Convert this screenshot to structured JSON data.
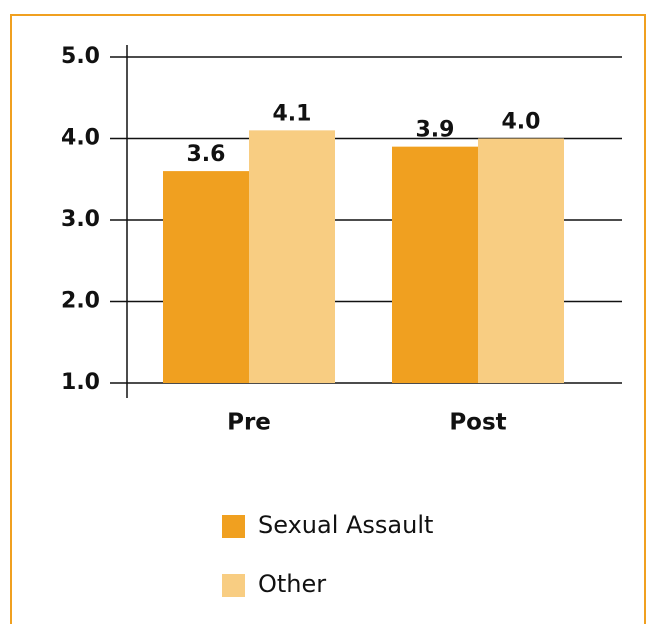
{
  "chart_data": {
    "type": "bar",
    "categories": [
      "Pre",
      "Post"
    ],
    "series": [
      {
        "name": "Sexual Assault",
        "color": "#f0a020",
        "values": [
          3.6,
          3.9
        ],
        "value_labels": [
          "3.6",
          "3.9"
        ]
      },
      {
        "name": "Other",
        "color": "#f8cd82",
        "values": [
          4.1,
          4.0
        ],
        "value_labels": [
          "4.1",
          "4.0"
        ]
      }
    ],
    "ylim": [
      1,
      5
    ],
    "yticks": [
      {
        "value": 1,
        "label": "1.0"
      },
      {
        "value": 2,
        "label": "2.0"
      },
      {
        "value": 3,
        "label": "3.0"
      },
      {
        "value": 4,
        "label": "4.0"
      },
      {
        "value": 5,
        "label": "5.0"
      }
    ],
    "grid": true
  }
}
